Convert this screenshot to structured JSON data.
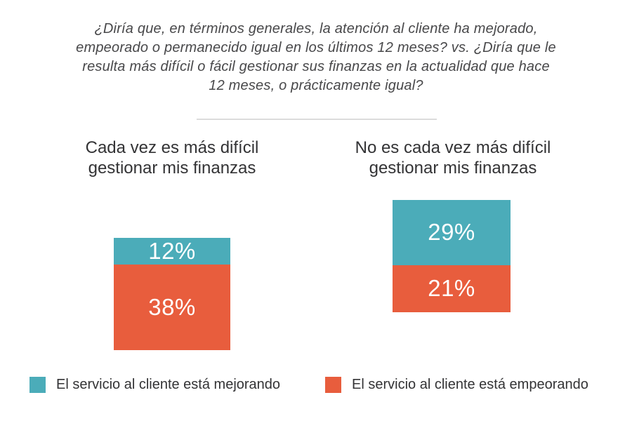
{
  "page": {
    "background": "#ffffff",
    "divider_color": "#dcdcdc"
  },
  "chart_data": {
    "type": "bar",
    "subtype": "stacked-vertical-columns",
    "title": "¿Diría que, en términos generales, la atención al cliente ha mejorado,\nempeorado o permanecido igual en los últimos 12 meses? vs. ¿Diría que le\nresulta más difícil o fácil gestionar sus finanzas en la actualidad que hace\n12 meses, o prácticamente igual?",
    "categories": [
      "Cada vez es más difícil\ngestionar mis finanzas",
      "No es cada vez más difícil\ngestionar mis finanzas"
    ],
    "series": [
      {
        "name": "El servicio al cliente está mejorando",
        "color": "#4BACB9",
        "values": [
          12,
          29
        ]
      },
      {
        "name": "El servicio al cliente está empeorando",
        "color": "#E85D3D",
        "values": [
          38,
          21
        ]
      }
    ],
    "value_labels": [
      [
        "12%",
        "38%"
      ],
      [
        "29%",
        "21%"
      ]
    ],
    "value_suffix": "%",
    "xlabel": "",
    "ylabel": "",
    "grid": false,
    "axes_visible": false,
    "legend_position": "bottom",
    "text_colors": {
      "title": "#48484a",
      "category": "#333335",
      "legend": "#333335",
      "value_label": "#ffffff"
    }
  }
}
